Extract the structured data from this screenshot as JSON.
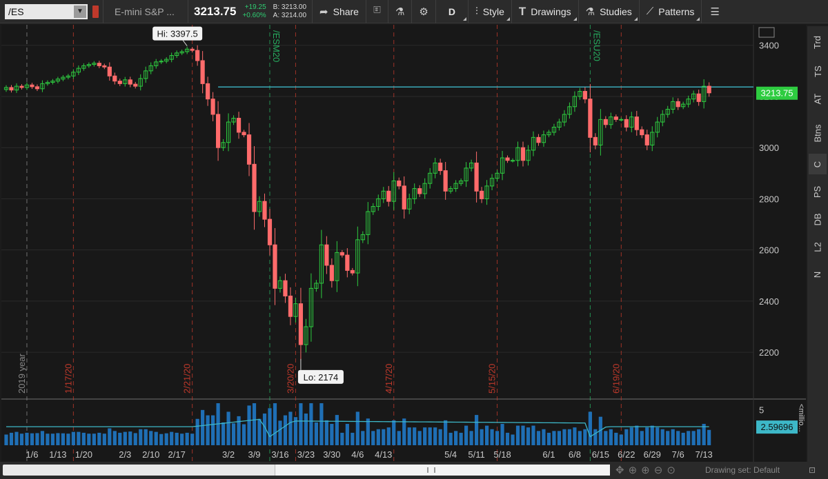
{
  "toolbar": {
    "symbol": "/ES",
    "description": "E-mini S&P ...",
    "last": "3213.75",
    "change_abs": "+19.25",
    "change_pct": "+0.60%",
    "bid": "B: 3213.00",
    "ask": "A: 3214.00",
    "share_label": "Share",
    "period_label": "D",
    "style_label": "Style",
    "drawings_label": "Drawings",
    "studies_label": "Studies",
    "patterns_label": "Patterns"
  },
  "side_tabs": [
    "Trd",
    "TS",
    "AT",
    "Btns",
    "C",
    "PS",
    "DB",
    "L2",
    "N"
  ],
  "status": {
    "drawing_set": "Drawing set: Default"
  },
  "chart_data": [
    {
      "type": "candlestick",
      "title": "",
      "ylim": [
        2020,
        3480
      ],
      "y_ticks": [
        2200,
        2400,
        2600,
        2800,
        3000,
        3200,
        3400
      ],
      "last_price_label": "3213.75",
      "horizontal_line": 3237,
      "hi_label": "Hi: 3397.5",
      "lo_label": "Lo: 2174",
      "vertical_markers": [
        {
          "label": "2019 year",
          "index": 4,
          "color": "#888888"
        },
        {
          "label": "1/17/20",
          "index": 13,
          "color": "#c0392b"
        },
        {
          "label": "2/21/20",
          "index": 36,
          "color": "#c0392b"
        },
        {
          "label": "/ESM20",
          "index": 51,
          "color": "#27ae60"
        },
        {
          "label": "3/20/20",
          "index": 56,
          "color": "#c0392b"
        },
        {
          "label": "4/17/20",
          "index": 75,
          "color": "#c0392b"
        },
        {
          "label": "5/15/20",
          "index": 95,
          "color": "#c0392b"
        },
        {
          "label": "/ESU20",
          "index": 113,
          "color": "#27ae60"
        },
        {
          "label": "6/19/20",
          "index": 119,
          "color": "#c0392b"
        }
      ],
      "x_labels": [
        {
          "label": "1/6",
          "index": 5
        },
        {
          "label": "1/13",
          "index": 10
        },
        {
          "label": "1/20",
          "index": 15
        },
        {
          "label": "2/3",
          "index": 23
        },
        {
          "label": "2/10",
          "index": 28
        },
        {
          "label": "2/17",
          "index": 33
        },
        {
          "label": "3/2",
          "index": 43
        },
        {
          "label": "3/9",
          "index": 48
        },
        {
          "label": "3/16",
          "index": 53
        },
        {
          "label": "3/23",
          "index": 58
        },
        {
          "label": "3/30",
          "index": 63
        },
        {
          "label": "4/6",
          "index": 68
        },
        {
          "label": "4/13",
          "index": 73
        },
        {
          "label": "5/4",
          "index": 86
        },
        {
          "label": "5/11",
          "index": 91
        },
        {
          "label": "5/18",
          "index": 96
        },
        {
          "label": "6/1",
          "index": 105
        },
        {
          "label": "6/8",
          "index": 110
        },
        {
          "label": "6/15",
          "index": 115
        },
        {
          "label": "6/22",
          "index": 120
        },
        {
          "label": "6/29",
          "index": 125
        },
        {
          "label": "7/6",
          "index": 130
        },
        {
          "label": "7/13",
          "index": 135
        }
      ],
      "closes": [
        3235,
        3225,
        3240,
        3235,
        3245,
        3238,
        3230,
        3250,
        3255,
        3260,
        3268,
        3275,
        3280,
        3295,
        3310,
        3320,
        3325,
        3330,
        3320,
        3315,
        3280,
        3260,
        3250,
        3265,
        3248,
        3240,
        3270,
        3300,
        3320,
        3335,
        3338,
        3345,
        3360,
        3370,
        3375,
        3385,
        3380,
        3340,
        3250,
        3190,
        3130,
        3000,
        3020,
        3100,
        3115,
        3060,
        3050,
        2935,
        2750,
        2790,
        2720,
        2620,
        2450,
        2480,
        2420,
        2340,
        2390,
        2230,
        2300,
        2450,
        2470,
        2620,
        2540,
        2480,
        2590,
        2580,
        2520,
        2510,
        2640,
        2660,
        2750,
        2770,
        2800,
        2830,
        2790,
        2870,
        2850,
        2760,
        2800,
        2840,
        2820,
        2860,
        2900,
        2940,
        2910,
        2830,
        2840,
        2860,
        2870,
        2920,
        2940,
        2830,
        2800,
        2850,
        2880,
        2900,
        2960,
        2950,
        2950,
        3000,
        2950,
        2990,
        3040,
        3020,
        3050,
        3060,
        3080,
        3100,
        3130,
        3160,
        3200,
        3220,
        3190,
        3040,
        3010,
        3110,
        3090,
        3120,
        3110,
        3110,
        3080,
        3120,
        3070,
        3050,
        3010,
        3060,
        3100,
        3130,
        3150,
        3180,
        3160,
        3170,
        3190,
        3210,
        3180,
        3240,
        3214
      ]
    },
    {
      "type": "bar",
      "title": "",
      "y_ticks": [
        0,
        5
      ],
      "value_label": "2.59696",
      "side_label": "<millio..."
    }
  ]
}
